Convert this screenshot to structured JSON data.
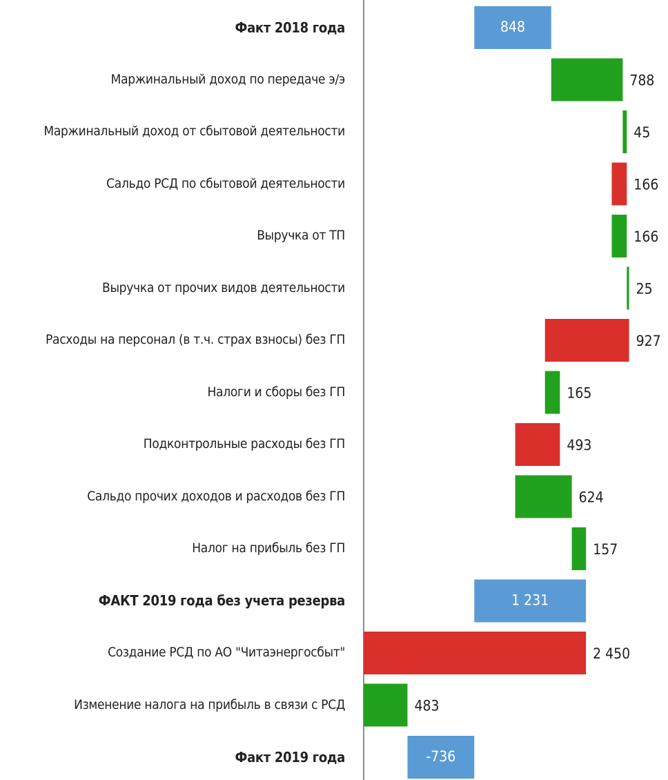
{
  "chart_data": {
    "type": "waterfall",
    "orientation": "horizontal",
    "categories": [
      "Факт 2018 года",
      "Маржинальный доход по передаче э/э",
      "Маржинальный доход от сбытовой деятельности",
      "Сальдо РСД по сбытовой деятельности",
      "Выручка от ТП",
      "Выручка от прочих видов деятельности",
      "Расходы на персонал (в т.ч. страх взносы) без ГП",
      "Налоги и сборы без ГП",
      "Подконтрольные расходы без ГП",
      "Сальдо прочих доходов и расходов без ГП",
      "Налог на прибыль без ГП",
      "ФАКТ 2019 года без учета резерва",
      "Создание РСД по АО \"Читаэнергосбыт\"",
      "Изменение налога на прибыль в связи с РСД",
      "Факт 2019 года"
    ],
    "measures": [
      "total",
      "relative",
      "relative",
      "relative",
      "relative",
      "relative",
      "relative",
      "relative",
      "relative",
      "relative",
      "relative",
      "total",
      "relative",
      "relative",
      "total"
    ],
    "values": [
      848,
      788,
      45,
      -166,
      166,
      25,
      -927,
      165,
      -493,
      624,
      157,
      1231,
      -2450,
      483,
      -736
    ],
    "value_labels": [
      "848",
      "788",
      "45",
      "166",
      "166",
      "25",
      "927",
      "165",
      "493",
      "624",
      "157",
      "1 231",
      "2 450",
      "483",
      "-736"
    ],
    "colors": {
      "increase": "#22a11f",
      "decrease": "#d9302c",
      "total": "#5b9bd5"
    },
    "xlim": [
      -1219,
      2135
    ]
  }
}
